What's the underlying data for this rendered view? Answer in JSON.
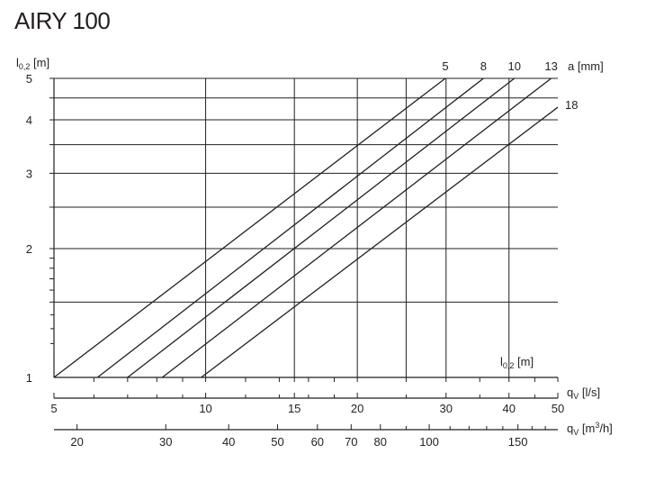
{
  "title": "AIRY 100",
  "chart_data": {
    "type": "line",
    "title": "AIRY 100",
    "y_axis": {
      "label": "l",
      "label_sub": "0,2",
      "label_unit": " [m]",
      "scale": "log",
      "range": [
        1,
        5
      ],
      "ticks": [
        1,
        2,
        3,
        4,
        5
      ]
    },
    "x_axis": {
      "label": "q",
      "label_sub": "V",
      "label_unit": " [l/s]",
      "scale": "log",
      "range": [
        5,
        50
      ],
      "ticks": [
        5,
        10,
        15,
        20,
        30,
        40,
        50
      ]
    },
    "x_axis_secondary": {
      "label": "q",
      "label_sub": "V",
      "label_unit_pre": " [m",
      "label_sup": "3",
      "label_unit_post": "/h]",
      "ticks": [
        20,
        30,
        40,
        50,
        60,
        70,
        80,
        100,
        150
      ]
    },
    "series_legend_title": "a [mm]",
    "series": [
      {
        "name": "5",
        "points": [
          [
            5,
            1.0
          ],
          [
            29.9,
            5.0
          ]
        ]
      },
      {
        "name": "8",
        "points": [
          [
            6.1,
            1.0
          ],
          [
            35.6,
            5.0
          ]
        ]
      },
      {
        "name": "10",
        "points": [
          [
            7.0,
            1.0
          ],
          [
            41.0,
            5.0
          ]
        ]
      },
      {
        "name": "13",
        "points": [
          [
            8.2,
            1.0
          ],
          [
            48.5,
            5.0
          ]
        ]
      },
      {
        "name": "18",
        "points": [
          [
            9.8,
            1.0
          ],
          [
            50.0,
            4.28
          ]
        ]
      }
    ],
    "inner_label": {
      "text": "l",
      "sub": "0,2",
      "unit": " [m]"
    },
    "grid": true
  }
}
